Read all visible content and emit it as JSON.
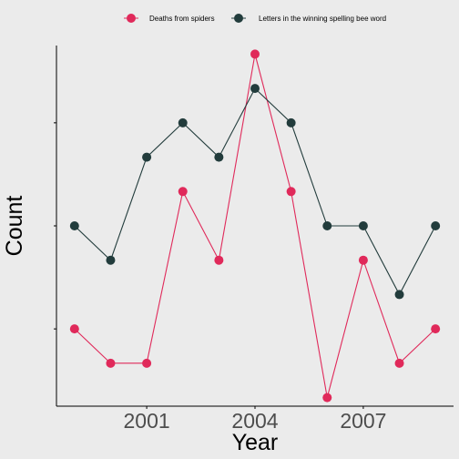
{
  "chart_data": {
    "type": "line",
    "xlabel": "Year",
    "ylabel": "Count",
    "x": [
      1999,
      2000,
      2001,
      2002,
      2003,
      2004,
      2005,
      2006,
      2007,
      2008,
      2009
    ],
    "x_ticks": [
      2001,
      2004,
      2007
    ],
    "x_tick_labels": [
      "2001",
      "2004",
      "2007"
    ],
    "xlim": [
      1998.5,
      2009.5
    ],
    "ylim": [
      -0.25,
      10.25
    ],
    "y_tick_labels_shown": false,
    "grid": false,
    "legend_position": "top",
    "series": [
      {
        "name": "Deaths from spiders",
        "color": "#e0295a",
        "values": [
          2,
          1,
          1,
          6,
          4,
          10,
          6,
          0,
          4,
          1,
          2
        ]
      },
      {
        "name": "Letters in the winning spelling bee word",
        "color": "#223c3c",
        "values": [
          5,
          4,
          7,
          8,
          7,
          9,
          8,
          5,
          5,
          3,
          5
        ]
      }
    ]
  }
}
